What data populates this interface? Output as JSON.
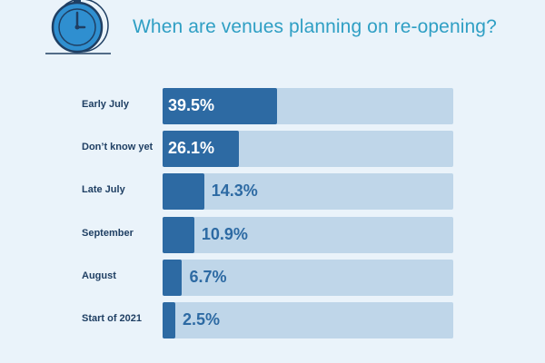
{
  "colors": {
    "background": "#eaf3fa",
    "title": "#2f9fc4",
    "bar_fill": "#2d6aa3",
    "bar_track": "#bfd6e9",
    "label": "#1f3f63",
    "value_inside": "#ffffff",
    "value_outside": "#2d6aa3"
  },
  "icon": "stopwatch-icon",
  "chart_data": {
    "type": "bar",
    "orientation": "horizontal",
    "title": "When are venues planning on re-opening?",
    "xlabel": "",
    "ylabel": "",
    "xlim": [
      0,
      100
    ],
    "grid": false,
    "legend": "none",
    "categories": [
      "Early July",
      "Don’t know yet",
      "Late July",
      "September",
      "August",
      "Start of 2021"
    ],
    "values": [
      39.5,
      26.1,
      14.3,
      10.9,
      6.7,
      2.5
    ],
    "value_labels": [
      "39.5%",
      "26.1%",
      "14.3%",
      "10.9%",
      "6.7%",
      "2.5%"
    ]
  }
}
